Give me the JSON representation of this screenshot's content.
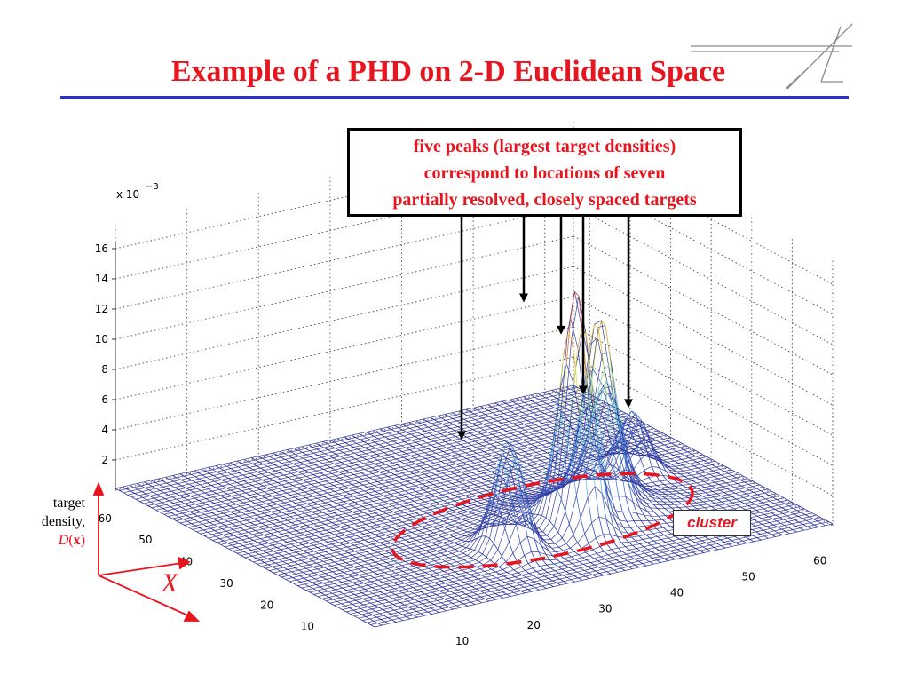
{
  "slide": {
    "title": "Example of a PHD on 2-D Euclidean Space",
    "callout_lines": [
      "five peaks (largest target densities)",
      "correspond to locations of seven",
      "partially resolved, closely spaced targets"
    ],
    "cluster_label": "cluster",
    "zaxis_caption": {
      "line1": "target",
      "line2": "density,",
      "symbol": "D",
      "symbol_arg": "x"
    },
    "space_symbol": "X",
    "logo_icon": "stylized-a-logo-icon"
  },
  "colors": {
    "title": "#e8141e",
    "rule": "#2b33b8",
    "annotation": "#e8141e",
    "mesh_low": "#2b2f9e"
  },
  "chart_data": {
    "type": "surface",
    "title": "",
    "xlabel": "",
    "ylabel": "",
    "zlabel": "",
    "z_multiplier_label": "x 10",
    "z_multiplier_exponent": "−3",
    "x_ticks": [
      "10",
      "20",
      "30",
      "40",
      "50",
      "60"
    ],
    "y_ticks": [
      "10",
      "20",
      "30",
      "40",
      "50",
      "60"
    ],
    "z_ticks": [
      "2",
      "4",
      "6",
      "8",
      "10",
      "12",
      "14",
      "16"
    ],
    "xlim": [
      0,
      64
    ],
    "ylim": [
      0,
      64
    ],
    "zlim": [
      0,
      0.018
    ],
    "grid": true,
    "peaks": [
      {
        "x": 27.0,
        "y": 14.5,
        "z": 0.0072
      },
      {
        "x": 37.0,
        "y": 15.5,
        "z": 0.0151
      },
      {
        "x": 42.5,
        "y": 19.5,
        "z": 0.0118
      },
      {
        "x": 46.0,
        "y": 24.0,
        "z": 0.0068
      },
      {
        "x": 54.0,
        "y": 31.5,
        "z": 0.004
      }
    ],
    "baseline_density": 0.00012
  }
}
